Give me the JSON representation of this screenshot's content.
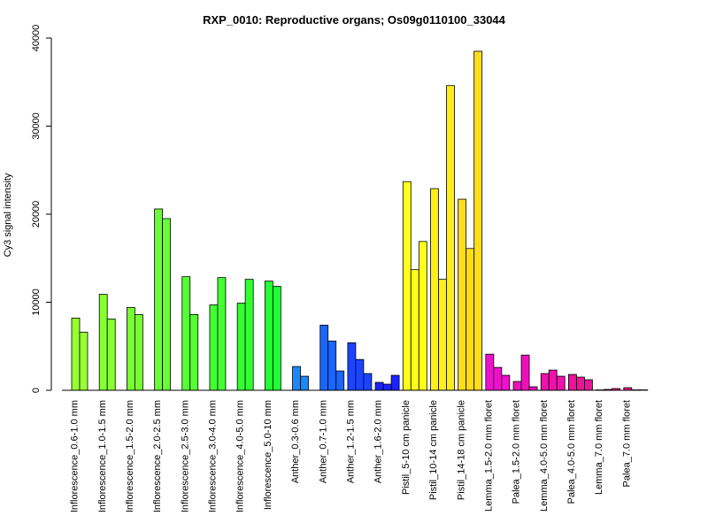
{
  "chart_data": {
    "type": "bar",
    "title": "RXP_0010: Reproductive organs; Os09g0110100_33044",
    "xlabel": "",
    "ylabel": "Cy3 signal intensity",
    "ylim": [
      0,
      40000
    ],
    "yticks": [
      0,
      10000,
      20000,
      30000,
      40000
    ],
    "grid": false,
    "legend": "none",
    "groups": [
      {
        "label": "Inflorescence_0.6-1.0 mm",
        "color": "#99ff33",
        "values": [
          8200,
          6600
        ]
      },
      {
        "label": "Inflorescence_1.0-1.5 mm",
        "color": "#88ff33",
        "values": [
          10900,
          8100
        ]
      },
      {
        "label": "Inflorescence_1.5-2.0 mm",
        "color": "#77ff33",
        "values": [
          9400,
          8600
        ]
      },
      {
        "label": "Inflorescence_2.0-2.5 mm",
        "color": "#66ff33",
        "values": [
          20600,
          19500
        ]
      },
      {
        "label": "Inflorescence_2.5-3.0 mm",
        "color": "#55ff33",
        "values": [
          12900,
          8600
        ]
      },
      {
        "label": "Inflorescence_3.0-4.0 mm",
        "color": "#44ff33",
        "values": [
          9700,
          12800
        ]
      },
      {
        "label": "Inflorescence_4.0-5.0 mm",
        "color": "#33ff33",
        "values": [
          9900,
          12600
        ]
      },
      {
        "label": "Inflorescence_5.0-10 mm",
        "color": "#22ff33",
        "values": [
          12400,
          11800
        ]
      },
      {
        "label": "Anther_0.3-0.6 mm",
        "color": "#1a88ff",
        "values": [
          2700,
          1600
        ]
      },
      {
        "label": "Anther_0.7-1.0 mm",
        "color": "#1a66ff",
        "values": [
          7400,
          5600,
          2200
        ]
      },
      {
        "label": "Anther_1.2-1.5 mm",
        "color": "#1a44ff",
        "values": [
          5400,
          3500,
          1900
        ]
      },
      {
        "label": "Anther_1.6-2.0 mm",
        "color": "#1a22ff",
        "values": [
          900,
          700,
          1700
        ]
      },
      {
        "label": "Pistil_5-10 cm panicle",
        "color": "#ffff1a",
        "values": [
          23700,
          13700,
          16900
        ]
      },
      {
        "label": "Pistil_10-14 cm panicle",
        "color": "#ffee1a",
        "values": [
          22900,
          12600,
          34600
        ]
      },
      {
        "label": "Pistil_14-18 cm panicle",
        "color": "#ffdd1a",
        "values": [
          21700,
          16100,
          38500
        ]
      },
      {
        "label": "Lemma_1.5-2.0 mm floret",
        "color": "#ee11cc",
        "values": [
          4100,
          2600,
          1700
        ]
      },
      {
        "label": "Palea_1.5-2.0 mm floret",
        "color": "#ee11bb",
        "values": [
          1000,
          4000,
          400
        ]
      },
      {
        "label": "Lemma_4.0-5.0 mm floret",
        "color": "#ee11aa",
        "values": [
          1900,
          2300,
          1600
        ]
      },
      {
        "label": "Palea_4.0-5.0 mm floret",
        "color": "#ee1199",
        "values": [
          1800,
          1500,
          1200
        ]
      },
      {
        "label": "Lemma_7.0 mm floret",
        "color": "#ee1188",
        "values": [
          50,
          100,
          200
        ]
      },
      {
        "label": "Palea_7.0 mm floret",
        "color": "#ee1177",
        "values": [
          300,
          50,
          50
        ]
      }
    ]
  }
}
